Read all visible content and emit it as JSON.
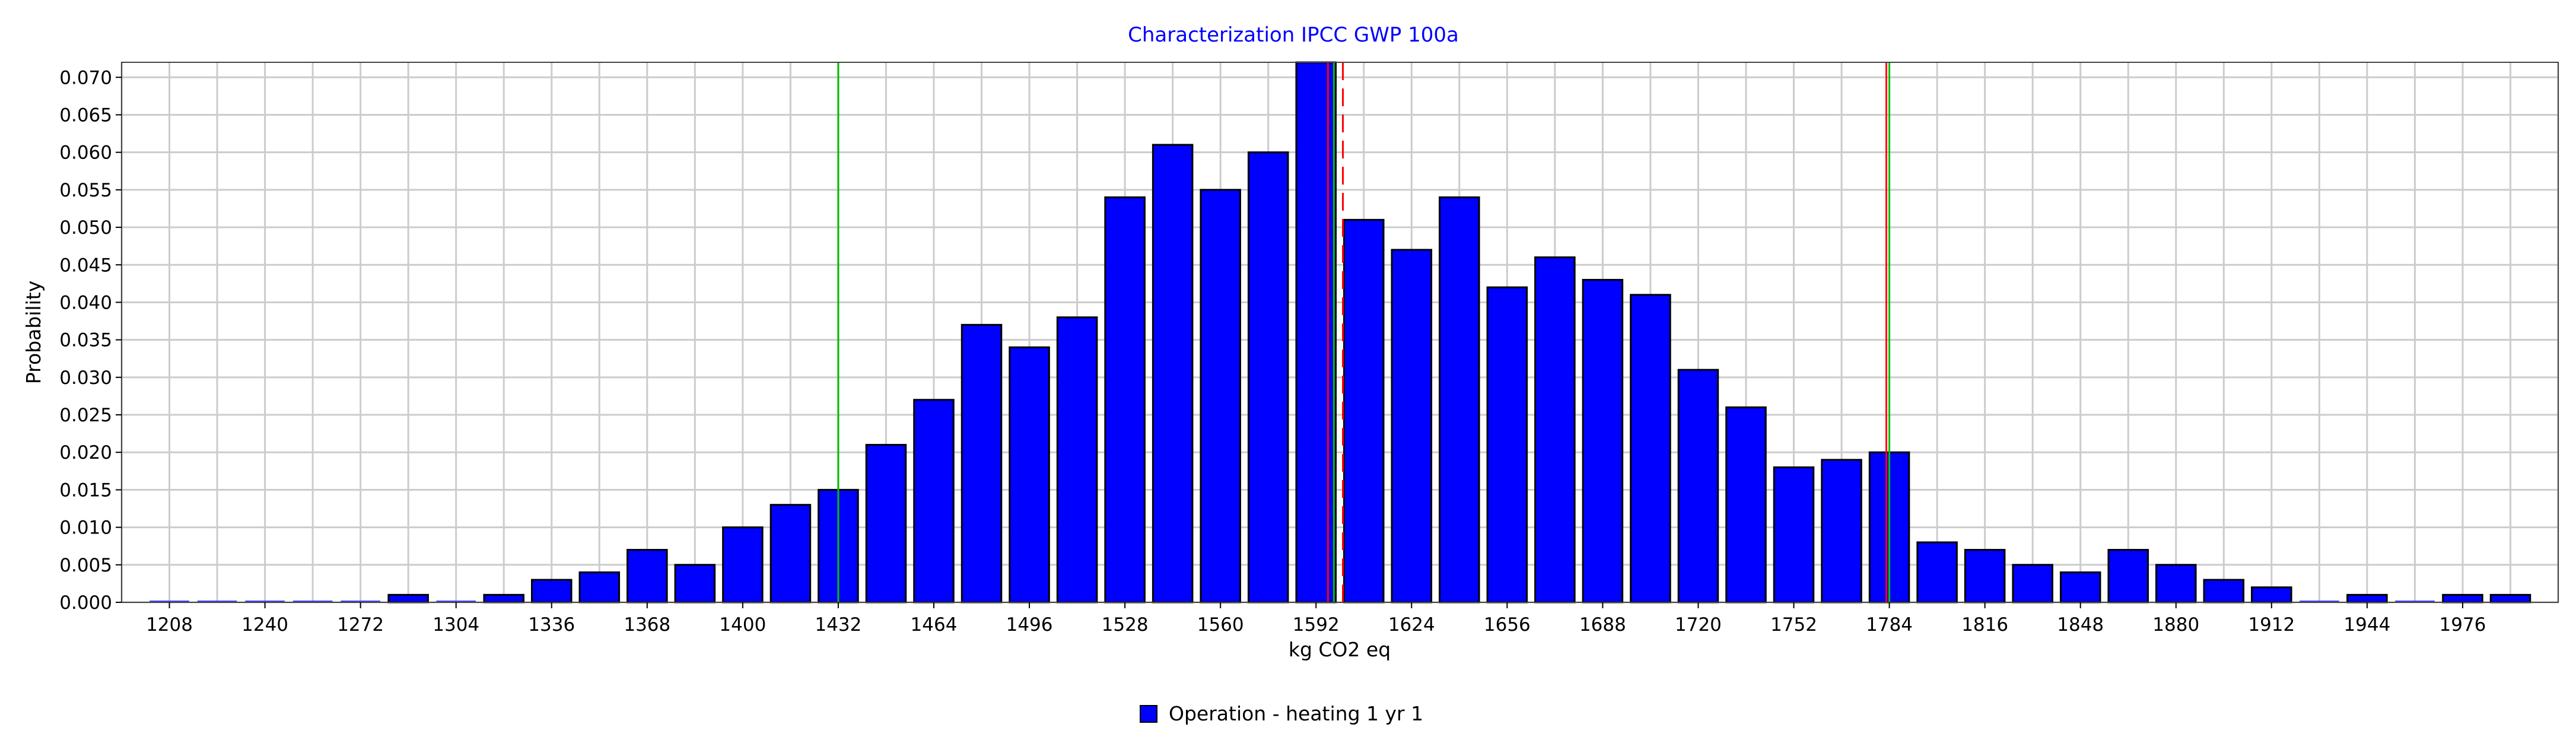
{
  "chart_data": {
    "type": "bar",
    "title": "Characterization IPCC GWP 100a",
    "xlabel": "kg CO2 eq",
    "ylabel": "Probability",
    "x_tick_labels": [
      "1208",
      "1240",
      "1272",
      "1304",
      "1336",
      "1368",
      "1400",
      "1432",
      "1464",
      "1496",
      "1528",
      "1560",
      "1592",
      "1624",
      "1656",
      "1688",
      "1720",
      "1752",
      "1784",
      "1816",
      "1848",
      "1880",
      "1912",
      "1944",
      "1976"
    ],
    "y_tick_labels": [
      "0.000",
      "0.005",
      "0.010",
      "0.015",
      "0.020",
      "0.025",
      "0.030",
      "0.035",
      "0.040",
      "0.045",
      "0.050",
      "0.055",
      "0.060",
      "0.065",
      "0.070"
    ],
    "ylim": [
      0,
      0.072
    ],
    "xlim": [
      1192,
      2008
    ],
    "grid": true,
    "bin_width": 16,
    "bins_x": [
      1208,
      1224,
      1240,
      1256,
      1272,
      1288,
      1304,
      1320,
      1336,
      1352,
      1368,
      1384,
      1400,
      1416,
      1432,
      1448,
      1464,
      1480,
      1496,
      1512,
      1528,
      1544,
      1560,
      1576,
      1592,
      1608,
      1624,
      1640,
      1656,
      1672,
      1688,
      1704,
      1720,
      1736,
      1752,
      1768,
      1784,
      1800,
      1816,
      1832,
      1848,
      1864,
      1880,
      1896,
      1912,
      1928,
      1944,
      1960,
      1976,
      1992
    ],
    "series": [
      {
        "name": "Operation - heating 1 yr 1",
        "color": "#0000ff",
        "values": [
          0,
          0,
          0,
          0,
          0,
          0.001,
          0,
          0.001,
          0.003,
          0.004,
          0.007,
          0.005,
          0.01,
          0.013,
          0.015,
          0.021,
          0.027,
          0.037,
          0.034,
          0.038,
          0.054,
          0.061,
          0.055,
          0.06,
          0.072,
          0.051,
          0.047,
          0.054,
          0.042,
          0.046,
          0.043,
          0.041,
          0.031,
          0.026,
          0.018,
          0.019,
          0.02,
          0.008,
          0.007,
          0.005,
          0.004,
          0.007,
          0.005,
          0.003,
          0.002,
          0,
          0.001,
          0,
          0.001,
          0.001
        ]
      }
    ],
    "reference_lines": [
      {
        "x": 1432,
        "color": "#ff0000",
        "style": "solid"
      },
      {
        "x": 1601,
        "color": "#ff0000",
        "style": "dashed"
      },
      {
        "x": 1783,
        "color": "#ff0000",
        "style": "solid"
      },
      {
        "x": 1432,
        "color": "#00c000",
        "style": "solid"
      },
      {
        "x": 1598,
        "color": "#00c000",
        "style": "solid"
      },
      {
        "x": 1784,
        "color": "#00c000",
        "style": "solid"
      },
      {
        "x": 1596,
        "color": "#ff0000",
        "style": "solid"
      }
    ],
    "legend": {
      "position": "bottom-center",
      "label": "Operation - heating 1 yr 1",
      "color": "#0000ff"
    }
  }
}
